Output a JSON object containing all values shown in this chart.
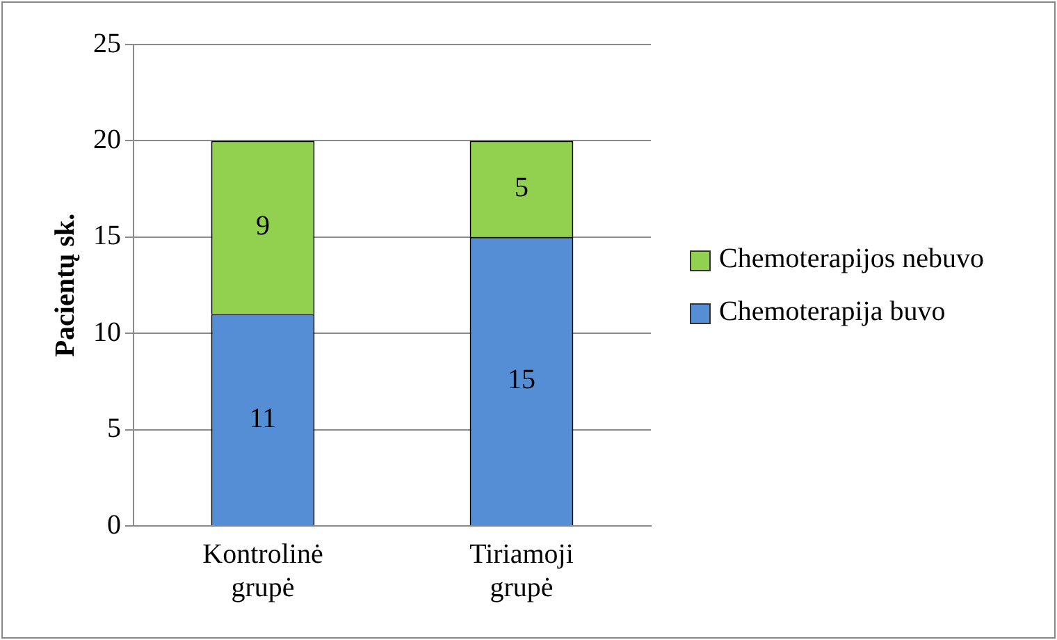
{
  "chart_data": {
    "type": "bar",
    "stacked": true,
    "ylabel": "Pacientų sk.",
    "categories": [
      "Kontrolinė grupė",
      "Tiriamoji grupė"
    ],
    "series": [
      {
        "name": "Chemoterapija buvo",
        "color": "#558ed5",
        "values": [
          11,
          15
        ]
      },
      {
        "name": "Chemoterapijos nebuvo",
        "color": "#92d050",
        "values": [
          9,
          5
        ]
      }
    ],
    "ylim": [
      0,
      25
    ],
    "yticks": [
      0,
      5,
      10,
      15,
      20,
      25
    ],
    "grid": "y",
    "legend": "right",
    "data_labels": true
  }
}
